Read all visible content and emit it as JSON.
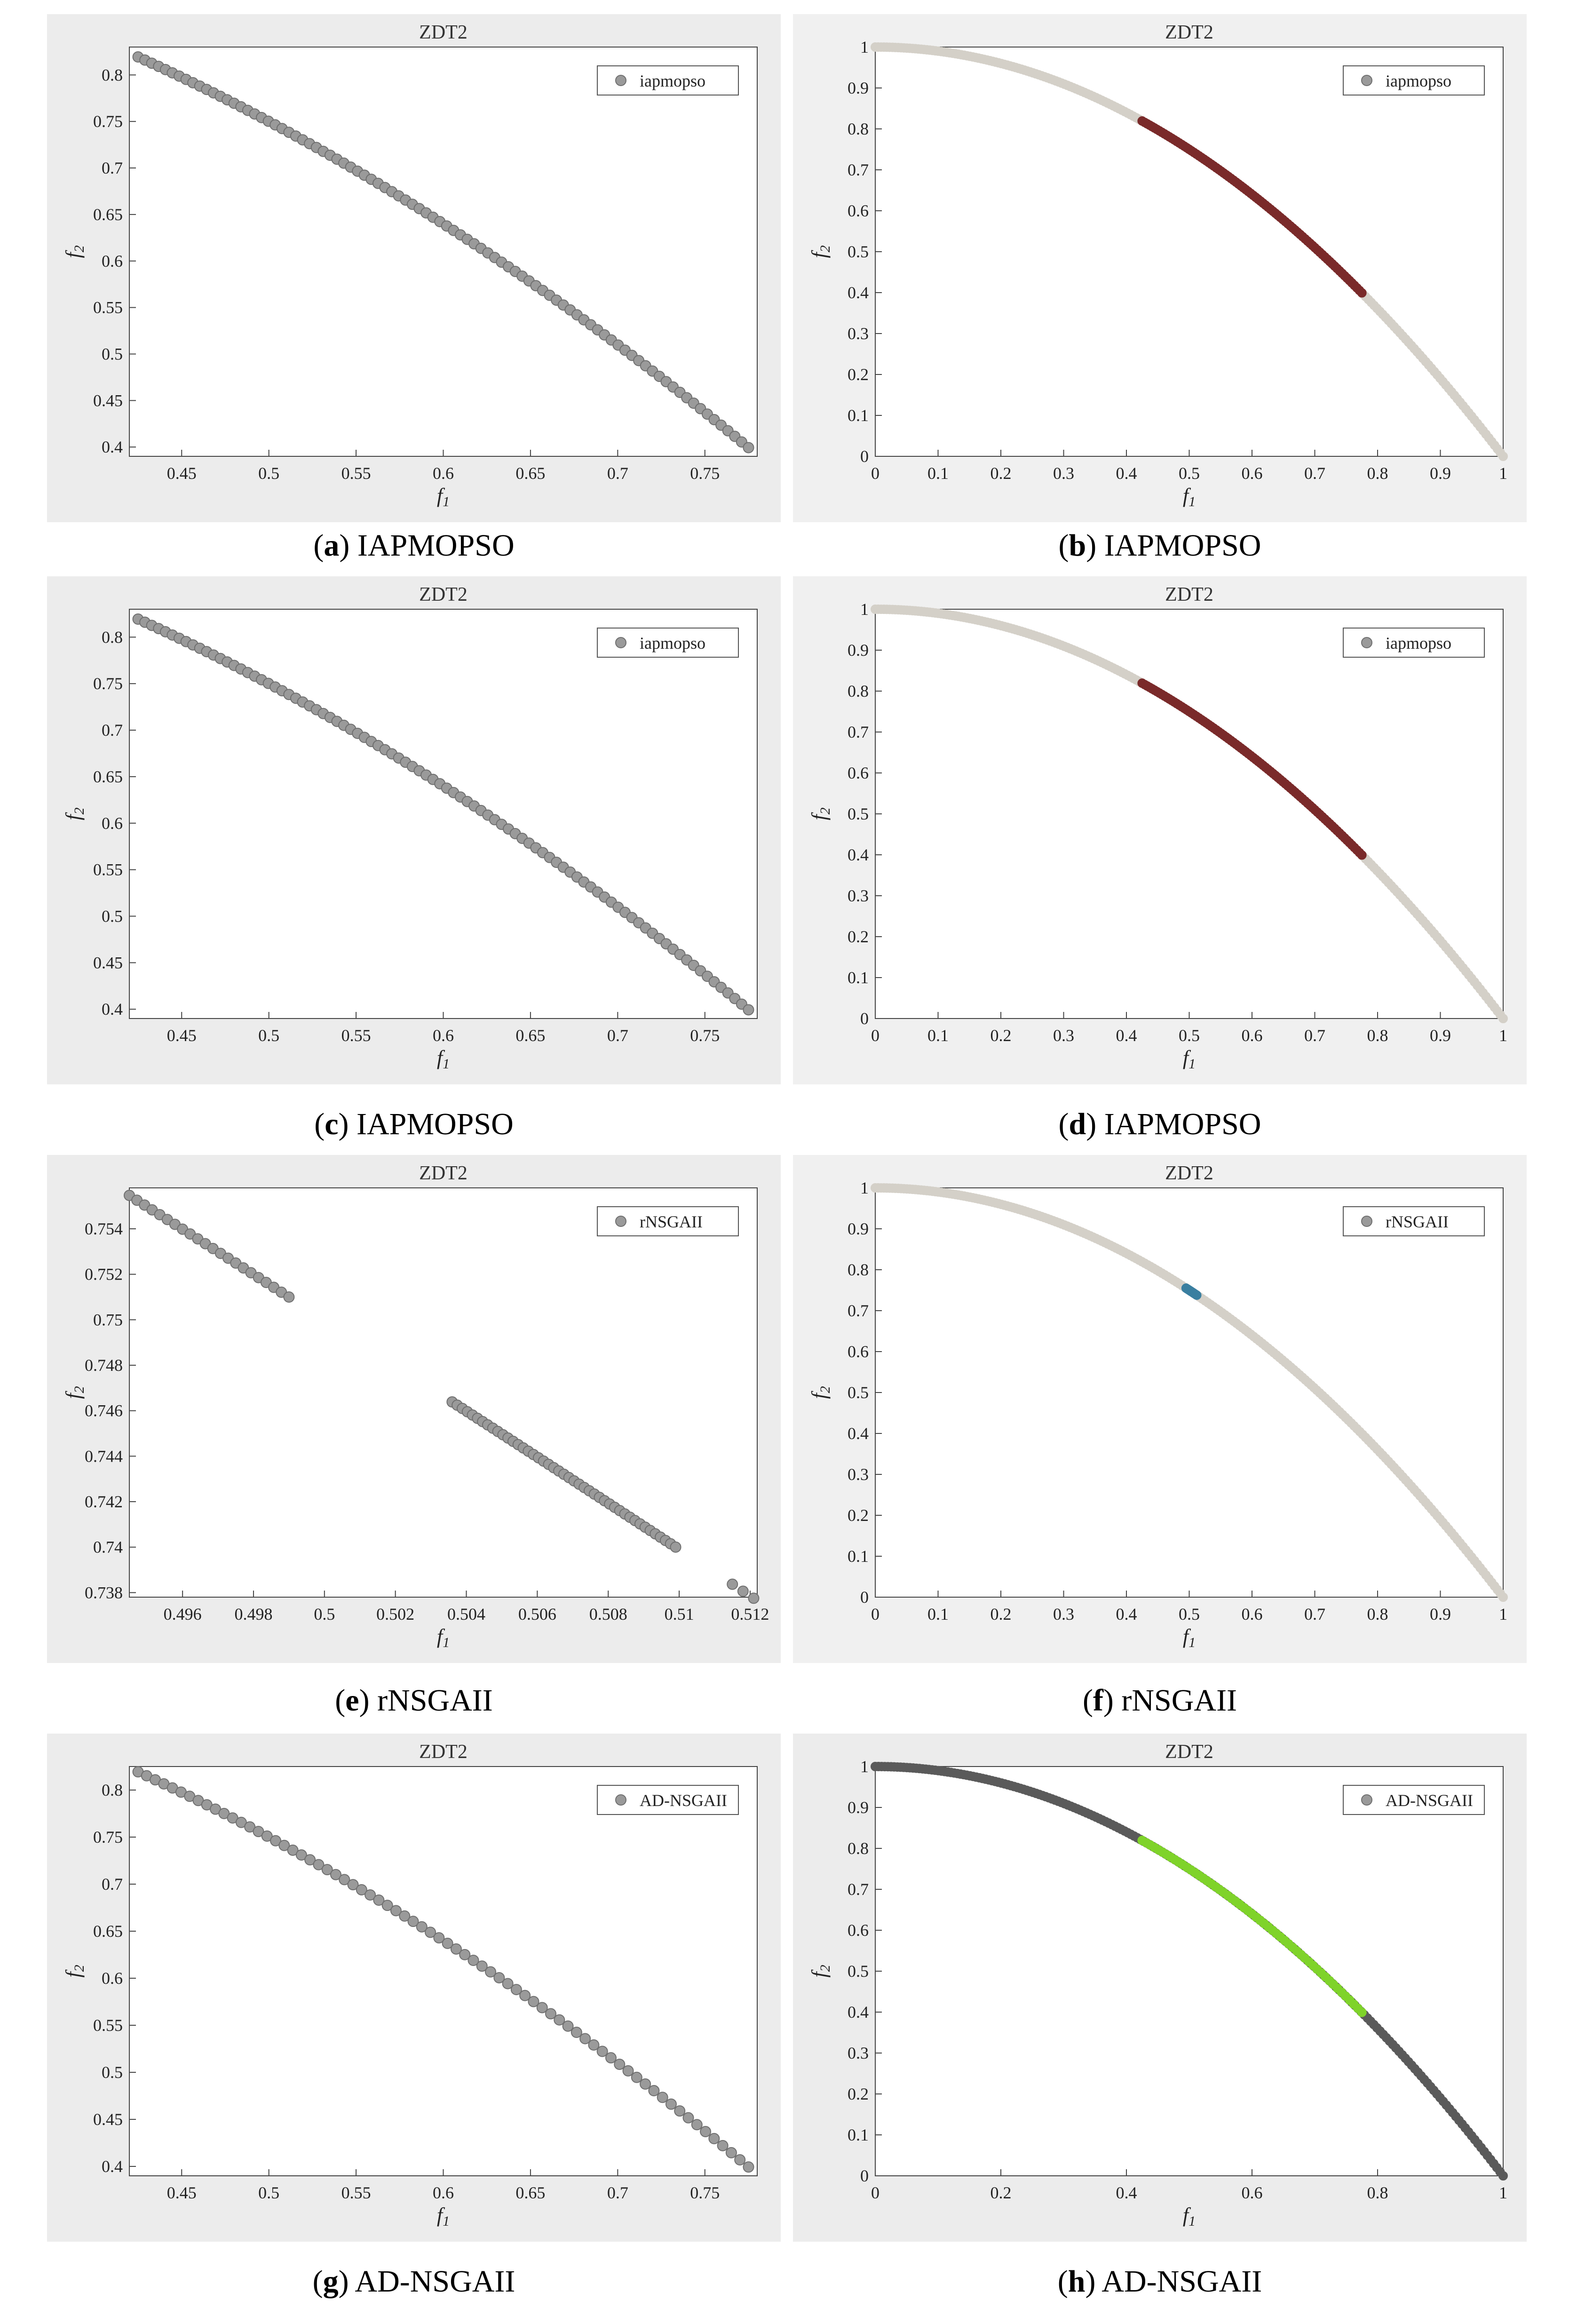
{
  "panels": [
    {
      "id": "a",
      "caption_letter": "a",
      "caption_text": "IAPMOPSO",
      "chart": {
        "type": "scatter",
        "title": "ZDT2",
        "xlabel": "f1",
        "ylabel": "f2",
        "legend": {
          "label": "iapmopso",
          "position": "top-right"
        },
        "xlim": [
          0.42,
          0.78
        ],
        "ylim": [
          0.39,
          0.83
        ],
        "xticks": [
          0.45,
          0.5,
          0.55,
          0.6,
          0.65,
          0.7,
          0.75
        ],
        "yticks": [
          0.4,
          0.45,
          0.5,
          0.55,
          0.6,
          0.65,
          0.7,
          0.75,
          0.8
        ],
        "series": [
          {
            "color": "#9a9a9a",
            "curve": "zdt2",
            "x_range": [
              0.425,
              0.775
            ],
            "n": 90
          }
        ]
      }
    },
    {
      "id": "b",
      "caption_letter": "b",
      "caption_text": "IAPMOPSO",
      "chart": {
        "type": "scatter",
        "title": "ZDT2",
        "xlabel": "f1",
        "ylabel": "f2",
        "legend": {
          "label": "iapmopso",
          "position": "top-right"
        },
        "xlim": [
          0,
          1
        ],
        "ylim": [
          0,
          1
        ],
        "xticks": [
          0,
          0.1,
          0.2,
          0.3,
          0.4,
          0.5,
          0.6,
          0.7,
          0.8,
          0.9,
          1
        ],
        "yticks": [
          0,
          0.1,
          0.2,
          0.3,
          0.4,
          0.5,
          0.6,
          0.7,
          0.8,
          0.9,
          1
        ],
        "series": [
          {
            "color": "#d4d0c8",
            "curve": "zdt2",
            "x_range": [
              0,
              1
            ],
            "n": 220
          },
          {
            "color": "#7a2a2a",
            "curve": "zdt2",
            "x_range": [
              0.425,
              0.775
            ],
            "n": 90
          }
        ]
      }
    },
    {
      "id": "c",
      "caption_letter": "c",
      "caption_text": "IAPMOPSO",
      "chart": {
        "type": "scatter",
        "title": "ZDT2",
        "xlabel": "f1",
        "ylabel": "f2",
        "legend": {
          "label": "iapmopso",
          "position": "top-right"
        },
        "xlim": [
          0.42,
          0.78
        ],
        "ylim": [
          0.39,
          0.83
        ],
        "xticks": [
          0.45,
          0.5,
          0.55,
          0.6,
          0.65,
          0.7,
          0.75
        ],
        "yticks": [
          0.4,
          0.45,
          0.5,
          0.55,
          0.6,
          0.65,
          0.7,
          0.75,
          0.8
        ],
        "series": [
          {
            "color": "#9a9a9a",
            "curve": "zdt2",
            "x_range": [
              0.425,
              0.775
            ],
            "n": 90
          }
        ]
      }
    },
    {
      "id": "d",
      "caption_letter": "d",
      "caption_text": "IAPMOPSO",
      "chart": {
        "type": "scatter",
        "title": "ZDT2",
        "xlabel": "f1",
        "ylabel": "f2",
        "legend": {
          "label": "iapmopso",
          "position": "top-right"
        },
        "xlim": [
          0,
          1
        ],
        "ylim": [
          0,
          1
        ],
        "xticks": [
          0,
          0.1,
          0.2,
          0.3,
          0.4,
          0.5,
          0.6,
          0.7,
          0.8,
          0.9,
          1
        ],
        "yticks": [
          0,
          0.1,
          0.2,
          0.3,
          0.4,
          0.5,
          0.6,
          0.7,
          0.8,
          0.9,
          1
        ],
        "series": [
          {
            "color": "#d4d0c8",
            "curve": "zdt2",
            "x_range": [
              0,
              1
            ],
            "n": 220
          },
          {
            "color": "#7a2a2a",
            "curve": "zdt2",
            "x_range": [
              0.425,
              0.775
            ],
            "n": 90
          }
        ]
      }
    },
    {
      "id": "e",
      "caption_letter": "e",
      "caption_text": "rNSGAII",
      "chart": {
        "type": "scatter",
        "title": "ZDT2",
        "xlabel": "f1",
        "ylabel": "f2",
        "legend": {
          "label": "rNSGAII",
          "position": "top-right"
        },
        "xlim": [
          0.4945,
          0.5122
        ],
        "ylim": [
          0.7378,
          0.7558
        ],
        "xticks": [
          0.496,
          0.498,
          0.5,
          0.502,
          0.504,
          0.506,
          0.508,
          0.51,
          0.512
        ],
        "yticks": [
          0.738,
          0.74,
          0.742,
          0.744,
          0.746,
          0.748,
          0.75,
          0.752,
          0.754
        ],
        "series": [
          {
            "color": "#9a9a9a",
            "curve": "zdt2",
            "segments": [
              [
                0.4945,
                0.499,
                22
              ],
              [
                0.5036,
                0.5099,
                45
              ],
              [
                0.5115,
                0.5121,
                3
              ]
            ]
          }
        ]
      }
    },
    {
      "id": "f",
      "caption_letter": "f",
      "caption_text": "rNSGAII",
      "chart": {
        "type": "scatter",
        "title": "ZDT2",
        "xlabel": "f1",
        "ylabel": "f2",
        "legend": {
          "label": "rNSGAII",
          "position": "top-right"
        },
        "xlim": [
          0,
          1
        ],
        "ylim": [
          0,
          1
        ],
        "xticks": [
          0,
          0.1,
          0.2,
          0.3,
          0.4,
          0.5,
          0.6,
          0.7,
          0.8,
          0.9,
          1
        ],
        "yticks": [
          0,
          0.1,
          0.2,
          0.3,
          0.4,
          0.5,
          0.6,
          0.7,
          0.8,
          0.9,
          1
        ],
        "series": [
          {
            "color": "#d4d0c8",
            "curve": "zdt2",
            "x_range": [
              0,
              1
            ],
            "n": 220
          },
          {
            "color": "#3a7fa0",
            "curve": "zdt2",
            "x_range": [
              0.495,
              0.512
            ],
            "n": 12
          }
        ]
      }
    },
    {
      "id": "g",
      "caption_letter": "g",
      "caption_text": "AD-NSGAII",
      "chart": {
        "type": "scatter",
        "title": "ZDT2",
        "xlabel": "f1",
        "ylabel": "f2",
        "legend": {
          "label": "AD-NSGAII",
          "position": "top-right"
        },
        "xlim": [
          0.42,
          0.78
        ],
        "ylim": [
          0.39,
          0.825
        ],
        "xticks": [
          0.45,
          0.5,
          0.55,
          0.6,
          0.65,
          0.7,
          0.75
        ],
        "yticks": [
          0.4,
          0.45,
          0.5,
          0.55,
          0.6,
          0.65,
          0.7,
          0.75,
          0.8
        ],
        "series": [
          {
            "color": "#9a9a9a",
            "curve": "zdt2",
            "x_range": [
              0.425,
              0.775
            ],
            "n": 72
          }
        ]
      }
    },
    {
      "id": "h",
      "caption_letter": "h",
      "caption_text": "AD-NSGAII",
      "chart": {
        "type": "scatter",
        "title": "ZDT2",
        "xlabel": "f1",
        "ylabel": "f2",
        "legend": {
          "label": "AD-NSGAII",
          "position": "top-right"
        },
        "xlim": [
          0,
          1
        ],
        "ylim": [
          0,
          1
        ],
        "xticks": [
          0,
          0.2,
          0.4,
          0.6,
          0.8,
          1
        ],
        "yticks": [
          0,
          0.1,
          0.2,
          0.3,
          0.4,
          0.5,
          0.6,
          0.7,
          0.8,
          0.9,
          1
        ],
        "series": [
          {
            "color": "#5a5a5a",
            "curve": "zdt2",
            "x_range": [
              0,
              1
            ],
            "n": 200
          },
          {
            "color": "#7fd32a",
            "curve": "zdt2",
            "x_range": [
              0.425,
              0.775
            ],
            "n": 55
          }
        ]
      }
    }
  ]
}
